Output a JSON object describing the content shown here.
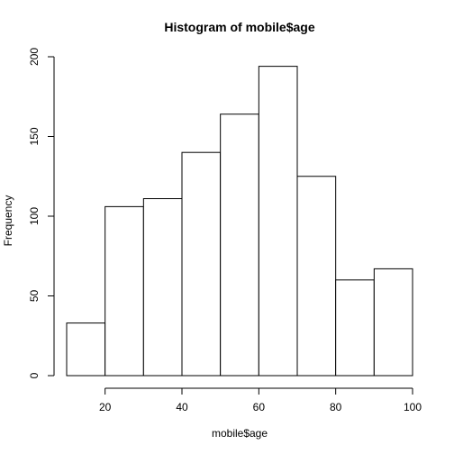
{
  "chart_data": {
    "type": "bar",
    "title": "Histogram of mobile$age",
    "xlabel": "mobile$age",
    "ylabel": "Frequency",
    "bin_edges": [
      10,
      20,
      30,
      40,
      50,
      60,
      70,
      80,
      90,
      100
    ],
    "values": [
      33,
      106,
      111,
      140,
      164,
      194,
      125,
      60,
      67
    ],
    "x_ticks": [
      20,
      40,
      60,
      80,
      100
    ],
    "y_ticks": [
      0,
      50,
      100,
      150,
      200
    ],
    "xlim": [
      10,
      100
    ],
    "ylim": [
      0,
      200
    ],
    "grid": false,
    "colors": {
      "bar_fill": "#ffffff",
      "bar_stroke": "#000000"
    }
  }
}
